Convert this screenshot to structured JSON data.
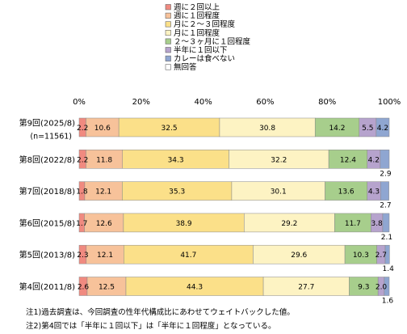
{
  "chart_data": {
    "type": "bar",
    "stacked": true,
    "orientation": "horizontal",
    "percent_stacked": true,
    "xlim": [
      0,
      100
    ],
    "x_ticks": [
      "0%",
      "20%",
      "40%",
      "60%",
      "80%",
      "100%"
    ],
    "grid": false,
    "legend_position": "top",
    "categories": [
      "第9回(2025/8)",
      "第8回(2022/8)",
      "第7回(2018/8)",
      "第6回(2015/8)",
      "第5回(2013/8)",
      "第4回(2011/8)"
    ],
    "category_sublabels": [
      "(n=11561)",
      "",
      "",
      "",
      "",
      ""
    ],
    "series": [
      {
        "name": "週に２回以上",
        "color": "#f08a80",
        "values": [
          2.2,
          2.2,
          1.8,
          1.7,
          2.3,
          2.6
        ]
      },
      {
        "name": "週に１回程度",
        "color": "#f7c29a",
        "values": [
          10.6,
          11.8,
          12.1,
          12.6,
          12.1,
          12.5
        ]
      },
      {
        "name": "月に２～３回程度",
        "color": "#fbe089",
        "values": [
          32.5,
          34.3,
          35.3,
          38.9,
          41.7,
          44.3
        ]
      },
      {
        "name": "月に１回程度",
        "color": "#fdf3c3",
        "values": [
          30.8,
          32.2,
          30.1,
          29.2,
          29.6,
          27.7
        ]
      },
      {
        "name": "２～３ヶ月に１回程度",
        "color": "#a7ce8c",
        "values": [
          14.2,
          12.4,
          13.6,
          11.7,
          10.3,
          9.3
        ]
      },
      {
        "name": "半年に１回以下",
        "color": "#b6a3cd",
        "values": [
          5.5,
          4.2,
          4.3,
          3.8,
          2.7,
          2.0
        ]
      },
      {
        "name": "カレーは食べない",
        "color": "#8fa6d1",
        "values": [
          4.2,
          2.9,
          2.7,
          2.1,
          1.4,
          1.6
        ]
      },
      {
        "name": "無回答",
        "color": "#ffffff",
        "values": [
          0,
          0,
          0,
          0,
          0,
          0
        ]
      }
    ]
  },
  "notes": [
    "注1)過去調査は、今回調査の性年代構成比にあわせてウェイトバックした値。",
    "注2)第4回では「半年に１回以下」は「半年に１回程度」となっている。"
  ]
}
